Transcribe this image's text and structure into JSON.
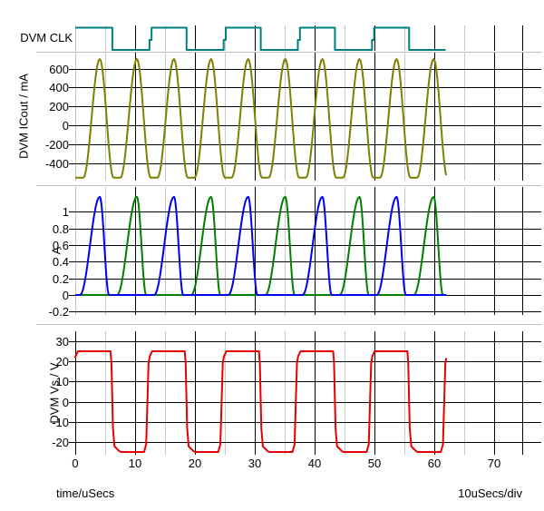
{
  "colors": {
    "background": "#FFFFFF",
    "grid_major": "#000000",
    "grid_minor": "#C8C8C8",
    "separator": "#C0C0C0",
    "text": "#000000",
    "clk": "#007F7F",
    "icout": "#7F7F00",
    "a_blue": "#0000F0",
    "a_green": "#007F00",
    "vs": "#E60000"
  },
  "chart_data": {
    "type": "line",
    "title": "",
    "x_axis": {
      "label": "time/uSecs",
      "per_div": "10uSecs/div",
      "min": 0,
      "max": 74.7,
      "major_ticks": [
        0,
        10,
        20,
        30,
        40,
        50,
        60,
        70
      ],
      "minor_step": 5,
      "grid": "on"
    },
    "plots": [
      {
        "id": "clk",
        "name": "DVM CLK",
        "type": "digital_clock",
        "y_ticks": [],
        "series": [
          {
            "id": "clk-trace",
            "color": "#007F7F",
            "kind": "clock",
            "initial_level": 1,
            "first_fall": 6.2,
            "period": 12.4,
            "glitch_level": 0.45,
            "glitch_duration": 0.35,
            "t_end": 61.9
          }
        ]
      },
      {
        "id": "icout",
        "name": "DVM ICout / mA",
        "unit": "mA",
        "y_ticks": [
          600,
          400,
          200,
          0,
          -200,
          -400
        ],
        "series": [
          {
            "id": "icout-trace",
            "color": "#7F7F00",
            "kind": "pulse_train",
            "centers": [
              4.1,
              10.3,
              16.5,
              22.7,
              28.9,
              35.1,
              41.3,
              47.5,
              53.7,
              59.9
            ],
            "base": -550,
            "peak": 700,
            "rise_time": 2.75,
            "fall_time": 2.3,
            "t_end": 62
          }
        ]
      },
      {
        "id": "a",
        "name": "A",
        "unit": "A",
        "y_ticks": [
          1,
          0.8,
          0.6,
          0.4,
          0.2,
          0,
          -0.2
        ],
        "series": [
          {
            "id": "a-green",
            "color": "#007F00",
            "kind": "pulse_train",
            "centers": [
              10.3,
              22.7,
              35.1,
              47.5,
              59.9
            ],
            "base": 0,
            "peak": 1.18,
            "rise_time": 3.3,
            "fall_time": 1.55,
            "t_end": 62
          },
          {
            "id": "a-blue",
            "color": "#0000F0",
            "kind": "pulse_train",
            "centers": [
              4.1,
              16.5,
              28.9,
              41.3,
              53.7
            ],
            "base": 0,
            "peak": 1.18,
            "rise_time": 3.3,
            "fall_time": 1.55,
            "t_end": 62
          }
        ]
      },
      {
        "id": "vs",
        "name": "DVM Vs / V",
        "unit": "V",
        "y_ticks": [
          30,
          20,
          10,
          0,
          -10,
          -20
        ],
        "series": [
          {
            "id": "vs-trace",
            "color": "#E60000",
            "kind": "square_wave",
            "period": 12.4,
            "first_fall": 6.0,
            "first_rise": 11.5,
            "t_end": 62,
            "rise_shape": [
              [
                0,
                -24.8
              ],
              [
                0.35,
                -21
              ],
              [
                0.75,
                19
              ],
              [
                0.95,
                22.5
              ],
              [
                1.35,
                25
              ]
            ],
            "fall_shape": [
              [
                -0.1,
                25
              ],
              [
                0.05,
                19
              ],
              [
                0.3,
                -13
              ],
              [
                0.55,
                -22
              ],
              [
                1.4,
                -24.5
              ],
              [
                1.7,
                -24.8
              ]
            ]
          }
        ]
      }
    ]
  }
}
